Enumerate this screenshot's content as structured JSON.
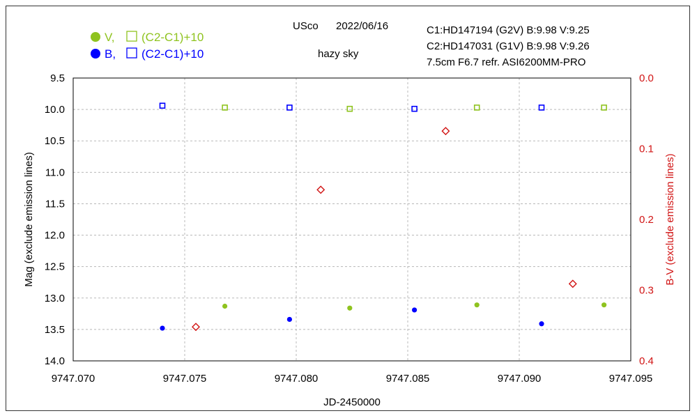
{
  "header": {
    "object": "USco",
    "date": "2022/06/16",
    "sky": "hazy sky",
    "comp1": "C1:HD147194 (G2V)  B:9.98 V:9.25",
    "comp2": "C2:HD147031 (G1V)  B:9.98 V:9.26",
    "instrument": "7.5cm  F6.7  refr.  ASI6200MM-PRO"
  },
  "legend": {
    "v_label": "V,",
    "v_check_label": "(C2-C1)+10",
    "b_label": "B,",
    "b_check_label": "(C2-C1)+10"
  },
  "colors": {
    "v": "#8fc31f",
    "b": "#0000ff",
    "bv": "#d11414",
    "left_axis": "#000000",
    "right_axis": "#d11414"
  },
  "chart_data": {
    "type": "scatter",
    "xlabel": "JD-2450000",
    "ylabel_left": "Mag (exclude emission lines)",
    "ylabel_right": "B-V (exclude emission lines)",
    "xlim": [
      9747.07,
      9747.095
    ],
    "ylim_left": [
      9.5,
      14.0
    ],
    "ylim_left_inverted": true,
    "ylim_right": [
      0.0,
      0.4
    ],
    "ylim_right_inverted": true,
    "x_ticks": [
      "9747.070",
      "9747.075",
      "9747.080",
      "9747.085",
      "9747.090",
      "9747.095"
    ],
    "x_tick_values": [
      9747.07,
      9747.075,
      9747.08,
      9747.085,
      9747.09,
      9747.095
    ],
    "y_left_ticks": [
      "9.5",
      "10.0",
      "10.5",
      "11.0",
      "11.5",
      "12.0",
      "12.5",
      "13.0",
      "13.5",
      "14.0"
    ],
    "y_left_tick_values": [
      9.5,
      10.0,
      10.5,
      11.0,
      11.5,
      12.0,
      12.5,
      13.0,
      13.5,
      14.0
    ],
    "y_right_ticks": [
      "0.0",
      "0.1",
      "0.2",
      "0.3",
      "0.4"
    ],
    "y_right_tick_values": [
      0.0,
      0.1,
      0.2,
      0.3,
      0.4
    ],
    "grid": true,
    "series": [
      {
        "name": "V",
        "axis": "left",
        "marker": "filled-circle",
        "color_key": "v",
        "points": [
          [
            9747.0768,
            13.13
          ],
          [
            9747.0824,
            13.16
          ],
          [
            9747.0881,
            13.11
          ],
          [
            9747.0938,
            13.11
          ]
        ]
      },
      {
        "name": "B",
        "axis": "left",
        "marker": "filled-circle",
        "color_key": "b",
        "points": [
          [
            9747.074,
            13.48
          ],
          [
            9747.0797,
            13.34
          ],
          [
            9747.0853,
            13.19
          ],
          [
            9747.091,
            13.41
          ]
        ]
      },
      {
        "name": "V (C2-C1)+10",
        "axis": "left",
        "marker": "open-square",
        "color_key": "v",
        "points": [
          [
            9747.0768,
            9.97
          ],
          [
            9747.0824,
            9.99
          ],
          [
            9747.0881,
            9.97
          ],
          [
            9747.0938,
            9.97
          ]
        ]
      },
      {
        "name": "B (C2-C1)+10",
        "axis": "left",
        "marker": "open-square",
        "color_key": "b",
        "points": [
          [
            9747.074,
            9.94
          ],
          [
            9747.0797,
            9.97
          ],
          [
            9747.0853,
            9.99
          ],
          [
            9747.091,
            9.97
          ]
        ]
      },
      {
        "name": "B-V",
        "axis": "right",
        "marker": "open-diamond",
        "color_key": "bv",
        "points": [
          [
            9747.0755,
            0.352
          ],
          [
            9747.0811,
            0.158
          ],
          [
            9747.0867,
            0.075
          ],
          [
            9747.0924,
            0.291
          ]
        ]
      }
    ]
  }
}
